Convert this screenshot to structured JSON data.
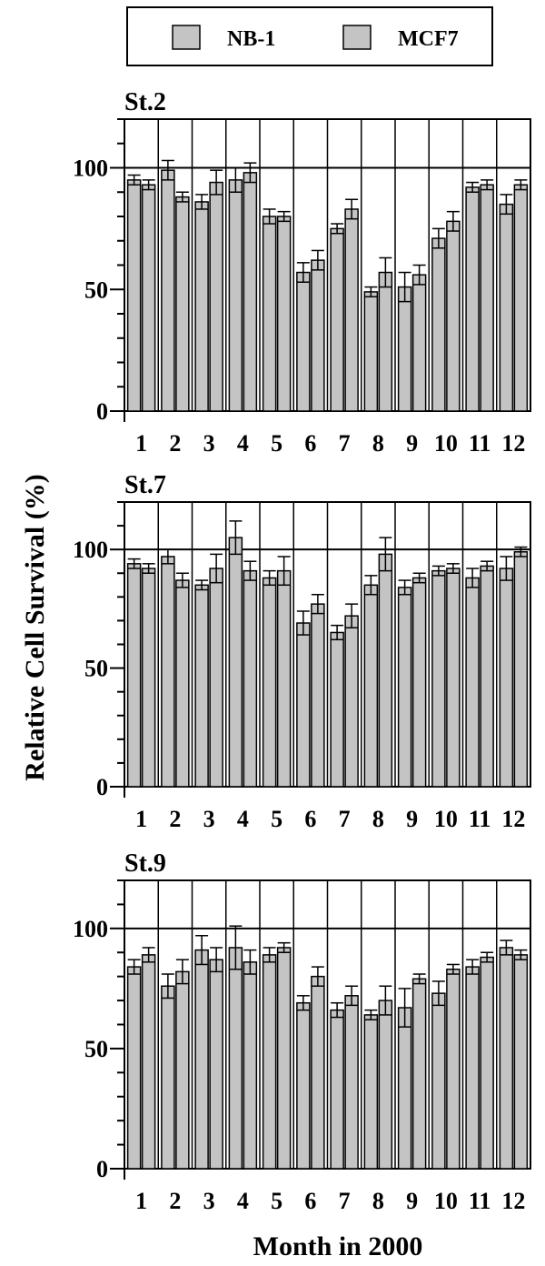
{
  "colors": {
    "bar_fill": "#c4c4c4",
    "bar_stroke": "#000000",
    "background": "#ffffff"
  },
  "legend": {
    "items": [
      {
        "label": "NB-1"
      },
      {
        "label": "MCF7"
      }
    ]
  },
  "ylabel": "Relative  Cell  Survival  (%)",
  "xlabel": "Month in 2000",
  "chart_data": [
    {
      "type": "bar",
      "title": "St.2",
      "categories": [
        "1",
        "2",
        "3",
        "4",
        "5",
        "6",
        "7",
        "8",
        "9",
        "10",
        "11",
        "12"
      ],
      "ylim": [
        0,
        120
      ],
      "yticks": [
        "0",
        "50",
        "100"
      ],
      "series": [
        {
          "name": "NB-1",
          "values": [
            95,
            99,
            86,
            95,
            80,
            57,
            75,
            49,
            51,
            71,
            92,
            85
          ],
          "errors": [
            2,
            4,
            3,
            5,
            3,
            4,
            2,
            2,
            6,
            4,
            2,
            4
          ]
        },
        {
          "name": "MCF7",
          "values": [
            93,
            88,
            94,
            98,
            80,
            62,
            83,
            57,
            56,
            78,
            93,
            93
          ],
          "errors": [
            2,
            2,
            5,
            4,
            2,
            4,
            4,
            6,
            4,
            4,
            2,
            2
          ]
        }
      ]
    },
    {
      "type": "bar",
      "title": "St.7",
      "categories": [
        "1",
        "2",
        "3",
        "4",
        "5",
        "6",
        "7",
        "8",
        "9",
        "10",
        "11",
        "12"
      ],
      "ylim": [
        0,
        120
      ],
      "yticks": [
        "0",
        "50",
        "100"
      ],
      "series": [
        {
          "name": "NB-1",
          "values": [
            94,
            97,
            85,
            105,
            88,
            69,
            65,
            85,
            84,
            91,
            88,
            92
          ],
          "errors": [
            2,
            3,
            2,
            7,
            3,
            5,
            3,
            4,
            3,
            2,
            4,
            5
          ]
        },
        {
          "name": "MCF7",
          "values": [
            92,
            87,
            92,
            91,
            91,
            77,
            72,
            98,
            88,
            92,
            93,
            99
          ],
          "errors": [
            2,
            3,
            6,
            4,
            6,
            4,
            5,
            7,
            2,
            2,
            2,
            2
          ]
        }
      ]
    },
    {
      "type": "bar",
      "title": "St.9",
      "categories": [
        "1",
        "2",
        "3",
        "4",
        "5",
        "6",
        "7",
        "8",
        "9",
        "10",
        "11",
        "12"
      ],
      "ylim": [
        0,
        120
      ],
      "yticks": [
        "0",
        "50",
        "100"
      ],
      "series": [
        {
          "name": "NB-1",
          "values": [
            84,
            76,
            91,
            92,
            89,
            69,
            66,
            64,
            67,
            73,
            84,
            92
          ],
          "errors": [
            3,
            5,
            6,
            9,
            3,
            3,
            3,
            2,
            8,
            5,
            3,
            3
          ]
        },
        {
          "name": "MCF7",
          "values": [
            89,
            82,
            87,
            86,
            92,
            80,
            72,
            70,
            79,
            83,
            88,
            89
          ],
          "errors": [
            3,
            5,
            5,
            5,
            2,
            4,
            4,
            6,
            2,
            2,
            2,
            2
          ]
        }
      ]
    }
  ]
}
